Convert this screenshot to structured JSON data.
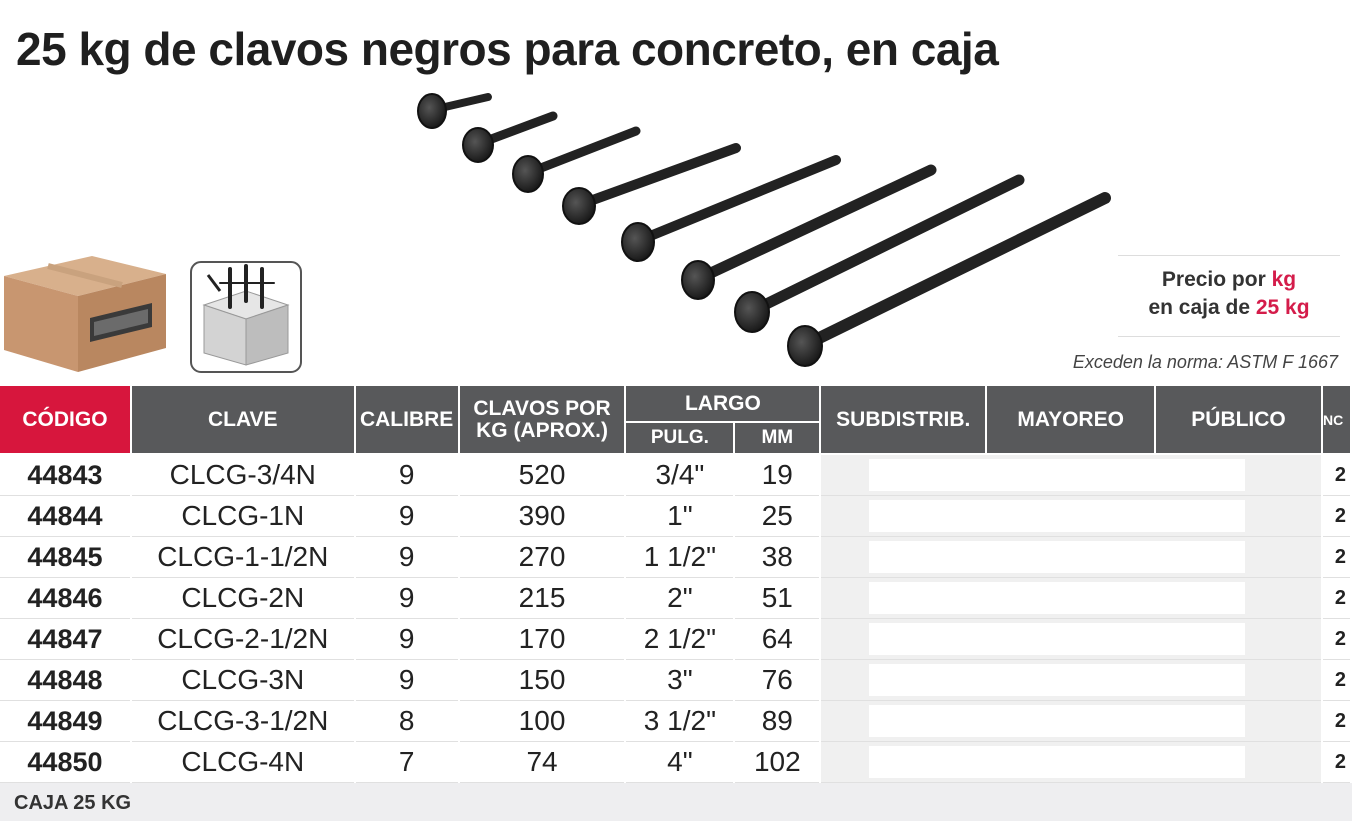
{
  "title": {
    "qty": "25 kg",
    "text": "de clavos negros para concreto, en caja"
  },
  "price_note": {
    "line1_a": "Precio por ",
    "line1_b": "kg",
    "line2_a": "en caja de ",
    "line2_b": "25 kg"
  },
  "norma": "Exceden la norma: ASTM F 1667",
  "headers": {
    "codigo": "CÓDIGO",
    "clave": "CLAVE",
    "calibre": "CALIBRE",
    "clavos_por_kg_1": "CLAVOS POR",
    "clavos_por_kg_2": "KG (APROX.)",
    "largo": "LARGO",
    "pulg": "PULG.",
    "mm": "MM",
    "subdistrib": "SUBDISTRIB.",
    "mayoreo": "MAYOREO",
    "publico": "PÚBLICO",
    "nc": "NC"
  },
  "rows": [
    {
      "codigo": "44843",
      "clave": "CLCG-3/4N",
      "calibre": "9",
      "clavos": "520",
      "pulg": "3/4\"",
      "mm": "19",
      "nc": "2"
    },
    {
      "codigo": "44844",
      "clave": "CLCG-1N",
      "calibre": "9",
      "clavos": "390",
      "pulg": "1\"",
      "mm": "25",
      "nc": "2"
    },
    {
      "codigo": "44845",
      "clave": "CLCG-1-1/2N",
      "calibre": "9",
      "clavos": "270",
      "pulg": "1 1/2\"",
      "mm": "38",
      "nc": "2"
    },
    {
      "codigo": "44846",
      "clave": "CLCG-2N",
      "calibre": "9",
      "clavos": "215",
      "pulg": "2\"",
      "mm": "51",
      "nc": "2"
    },
    {
      "codigo": "44847",
      "clave": "CLCG-2-1/2N",
      "calibre": "9",
      "clavos": "170",
      "pulg": "2 1/2\"",
      "mm": "64",
      "nc": "2"
    },
    {
      "codigo": "44848",
      "clave": "CLCG-3N",
      "calibre": "9",
      "clavos": "150",
      "pulg": "3\"",
      "mm": "76",
      "nc": "2"
    },
    {
      "codigo": "44849",
      "clave": "CLCG-3-1/2N",
      "calibre": "8",
      "clavos": "100",
      "pulg": "3 1/2\"",
      "mm": "89",
      "nc": "2"
    },
    {
      "codigo": "44850",
      "clave": "CLCG-4N",
      "calibre": "7",
      "clavos": "74",
      "pulg": "4\"",
      "mm": "102",
      "nc": "2"
    }
  ],
  "footer": "CAJA 25 KG",
  "colors": {
    "accent": "#d7163d",
    "header": "#58595b"
  }
}
